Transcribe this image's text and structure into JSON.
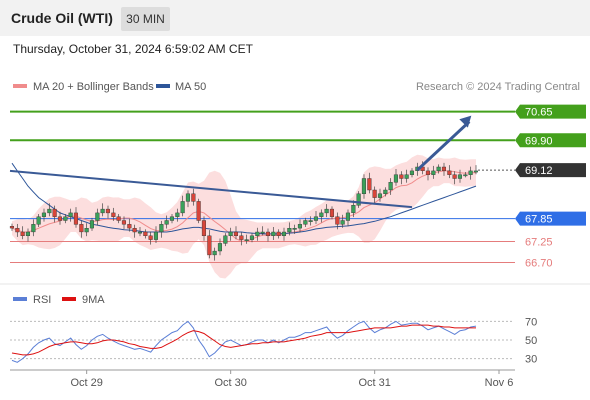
{
  "header": {
    "instrument": "Crude Oil (WTI)",
    "timeframe": "30 MIN",
    "timestamp": "Thursday, October 31, 2024 6:59:02 AM CET",
    "credit": "Research © 2024 Trading Central"
  },
  "legend_price": [
    {
      "label": "MA 20 + Bollinger Bands",
      "color": "#f08c8c"
    },
    {
      "label": "MA 50",
      "color": "#2d5599"
    }
  ],
  "legend_rsi": [
    {
      "label": "RSI",
      "color": "#5b7fd6"
    },
    {
      "label": "9MA",
      "color": "#dd1111"
    }
  ],
  "colors": {
    "resistance": "#44a01c",
    "support": "#e57c7c",
    "pivot": "#2f6ee6",
    "current": "#333333",
    "trendline": "#3a5a96",
    "bull_candle": "#3aa05a",
    "bear_candle": "#d8453a",
    "band_fill": "#fbd8d8"
  },
  "chart_data": [
    {
      "type": "candlestick",
      "title": "Crude Oil (WTI) 30 MIN",
      "x_ticks": [
        "Oct 29",
        "Oct 30",
        "Oct 31",
        "Nov 6"
      ],
      "ylim": [
        66.4,
        70.85
      ],
      "price_levels": [
        {
          "value": 70.65,
          "label": "70.65",
          "kind": "resistance"
        },
        {
          "value": 69.9,
          "label": "69.90",
          "kind": "resistance"
        },
        {
          "value": 69.12,
          "label": "69.12",
          "kind": "current"
        },
        {
          "value": 67.85,
          "label": "67.85",
          "kind": "pivot"
        },
        {
          "value": 67.25,
          "label": "67.25",
          "kind": "support"
        },
        {
          "value": 66.7,
          "label": "66.70",
          "kind": "support"
        }
      ],
      "close_series": [
        67.6,
        67.5,
        67.4,
        67.5,
        67.7,
        67.9,
        68.0,
        68.1,
        67.9,
        67.8,
        67.9,
        68.0,
        67.7,
        67.5,
        67.6,
        67.8,
        68.0,
        68.1,
        68.0,
        67.9,
        67.8,
        67.7,
        67.6,
        67.5,
        67.5,
        67.4,
        67.3,
        67.5,
        67.7,
        67.8,
        67.9,
        68.0,
        68.3,
        68.5,
        68.3,
        67.8,
        67.4,
        66.9,
        67.0,
        67.2,
        67.4,
        67.5,
        67.4,
        67.3,
        67.3,
        67.4,
        67.5,
        67.5,
        67.4,
        67.5,
        67.4,
        67.5,
        67.6,
        67.6,
        67.7,
        67.8,
        67.8,
        67.9,
        68.0,
        68.1,
        67.9,
        67.7,
        67.8,
        68.0,
        68.2,
        68.5,
        68.9,
        68.6,
        68.4,
        68.5,
        68.6,
        68.8,
        69.0,
        68.9,
        69.0,
        69.1,
        69.2,
        69.1,
        69.0,
        69.1,
        69.2,
        69.1,
        69.0,
        68.9,
        69.0,
        69.0,
        69.1,
        69.1
      ],
      "ma50": [
        69.3,
        69.1,
        68.9,
        68.7,
        68.55,
        68.4,
        68.3,
        68.2,
        68.1,
        68.0,
        67.95,
        67.9,
        67.85,
        67.8,
        67.75,
        67.7,
        67.68,
        67.65,
        67.62,
        67.6,
        67.58,
        67.56,
        67.55,
        67.54,
        67.52,
        67.5,
        67.5,
        67.5,
        67.5,
        67.5,
        67.52,
        67.55,
        67.58,
        67.6,
        67.62,
        67.62,
        67.6,
        67.58,
        67.55,
        67.52,
        67.5,
        67.5,
        67.5,
        67.5,
        67.48,
        67.47,
        67.46,
        67.45,
        67.45,
        67.45,
        67.45,
        67.46,
        67.47,
        67.48,
        67.5,
        67.52,
        67.55,
        67.58,
        67.6,
        67.62,
        67.63,
        67.64,
        67.65,
        67.66,
        67.68,
        67.7,
        67.72,
        67.75,
        67.78,
        67.82,
        67.86,
        67.9,
        67.95,
        68.0,
        68.05,
        68.1,
        68.15,
        68.2,
        68.25,
        68.3,
        68.35,
        68.4,
        68.45,
        68.5,
        68.55,
        68.6,
        68.65,
        68.7
      ],
      "trendline": [
        [
          0,
          69.1
        ],
        [
          75,
          68.15
        ]
      ],
      "projection": [
        [
          76,
          69.12
        ],
        [
          85,
          70.65
        ]
      ],
      "x_labels_at": [
        14,
        41,
        68,
        81
      ]
    },
    {
      "type": "line",
      "title": "RSI",
      "y_ticks": [
        70,
        50,
        30
      ],
      "ylim": [
        22,
        78
      ],
      "series": [
        {
          "name": "RSI",
          "values": [
            28,
            26,
            30,
            35,
            42,
            47,
            50,
            52,
            46,
            44,
            48,
            52,
            45,
            40,
            44,
            50,
            54,
            56,
            52,
            49,
            46,
            44,
            42,
            40,
            41,
            39,
            37,
            44,
            50,
            54,
            58,
            60,
            66,
            70,
            63,
            50,
            42,
            32,
            36,
            42,
            48,
            50,
            47,
            44,
            45,
            48,
            50,
            50,
            47,
            50,
            47,
            50,
            53,
            53,
            55,
            58,
            58,
            60,
            62,
            64,
            57,
            52,
            55,
            60,
            64,
            68,
            70,
            63,
            58,
            61,
            63,
            67,
            70,
            66,
            67,
            68,
            68,
            65,
            61,
            63,
            65,
            62,
            59,
            56,
            60,
            61,
            64,
            65
          ]
        },
        {
          "name": "9MA",
          "values": [
            36,
            35,
            34,
            34,
            35,
            37,
            40,
            43,
            45,
            46,
            47,
            48,
            48,
            47,
            46,
            46,
            47,
            49,
            50,
            50,
            49,
            48,
            46,
            45,
            43,
            42,
            41,
            41,
            42,
            45,
            48,
            51,
            55,
            58,
            60,
            59,
            57,
            53,
            49,
            45,
            43,
            42,
            43,
            44,
            45,
            46,
            46,
            47,
            47,
            48,
            48,
            48,
            49,
            50,
            51,
            52,
            54,
            55,
            56,
            58,
            58,
            58,
            58,
            58,
            59,
            60,
            61,
            62,
            63,
            63,
            63,
            63,
            64,
            65,
            65,
            66,
            66,
            66,
            66,
            65,
            65,
            64,
            64,
            63,
            63,
            63,
            63,
            63
          ]
        }
      ]
    }
  ]
}
